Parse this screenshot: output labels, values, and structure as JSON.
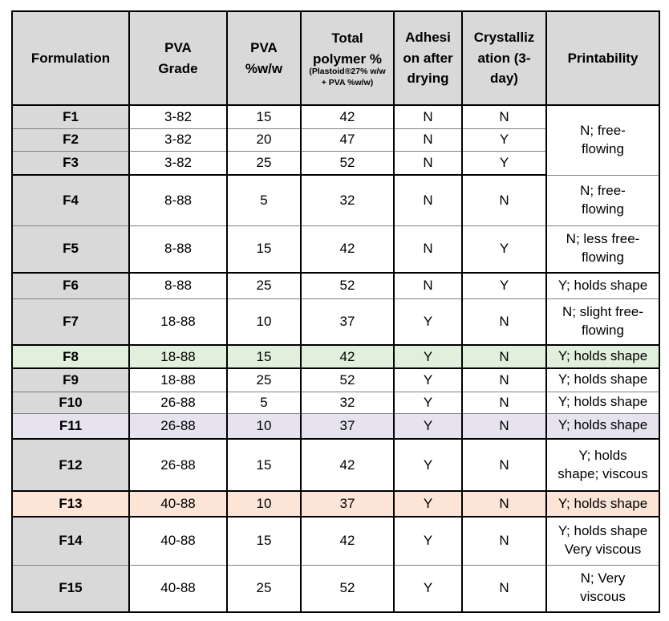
{
  "colors": {
    "header_bg": "#d9d9d9",
    "formulation_col_bg": "#d9d9d9",
    "highlight_green": "#e1f0dc",
    "highlight_lavender": "#e6e3ee",
    "highlight_peach": "#fce4d6",
    "border_dark": "#000000",
    "border_light": "#808080"
  },
  "table": {
    "columns": [
      {
        "label": "Formulation"
      },
      {
        "label": "PVA\nGrade"
      },
      {
        "label": "PVA\n%w/w"
      },
      {
        "label": "Total\npolymer %",
        "sublabel": "(Plastoid®27% w/w\n+ PVA %w/w)"
      },
      {
        "label": "Adhesi\non after\ndrying"
      },
      {
        "label": "Crystalliz\nation (3-\nday)"
      },
      {
        "label": "Printability"
      }
    ],
    "rows": [
      {
        "formulation": "F1",
        "pva_grade": "3-82",
        "pva_pct": "15",
        "total_polymer_pct": "42",
        "adhesion_after_drying": "N",
        "crystallization_3day": "N",
        "printability": "N; free-\nflowing",
        "printability_rowspan": 3,
        "highlight": "none"
      },
      {
        "formulation": "F2",
        "pva_grade": "3-82",
        "pva_pct": "20",
        "total_polymer_pct": "47",
        "adhesion_after_drying": "N",
        "crystallization_3day": "Y",
        "highlight": "none"
      },
      {
        "formulation": "F3",
        "pva_grade": "3-82",
        "pva_pct": "25",
        "total_polymer_pct": "52",
        "adhesion_after_drying": "N",
        "crystallization_3day": "Y",
        "highlight": "none"
      },
      {
        "formulation": "F4",
        "pva_grade": "8-88",
        "pva_pct": "5",
        "total_polymer_pct": "32",
        "adhesion_after_drying": "N",
        "crystallization_3day": "N",
        "printability": "N; free-\nflowing",
        "highlight": "none"
      },
      {
        "formulation": "F5",
        "pva_grade": "8-88",
        "pva_pct": "15",
        "total_polymer_pct": "42",
        "adhesion_after_drying": "N",
        "crystallization_3day": "Y",
        "printability": "N; less free-\nflowing",
        "highlight": "none"
      },
      {
        "formulation": "F6",
        "pva_grade": "8-88",
        "pva_pct": "25",
        "total_polymer_pct": "52",
        "adhesion_after_drying": "N",
        "crystallization_3day": "Y",
        "printability": "Y; holds shape",
        "highlight": "none"
      },
      {
        "formulation": "F7",
        "pva_grade": "18-88",
        "pva_pct": "10",
        "total_polymer_pct": "37",
        "adhesion_after_drying": "Y",
        "crystallization_3day": "N",
        "printability": "N; slight free-\nflowing",
        "highlight": "none"
      },
      {
        "formulation": "F8",
        "pva_grade": "18-88",
        "pva_pct": "15",
        "total_polymer_pct": "42",
        "adhesion_after_drying": "Y",
        "crystallization_3day": "N",
        "printability": "Y; holds shape",
        "highlight": "green"
      },
      {
        "formulation": "F9",
        "pva_grade": "18-88",
        "pva_pct": "25",
        "total_polymer_pct": "52",
        "adhesion_after_drying": "Y",
        "crystallization_3day": "N",
        "printability": "Y; holds shape",
        "highlight": "none"
      },
      {
        "formulation": "F10",
        "pva_grade": "26-88",
        "pva_pct": "5",
        "total_polymer_pct": "32",
        "adhesion_after_drying": "Y",
        "crystallization_3day": "N",
        "printability": "Y; holds shape",
        "highlight": "none"
      },
      {
        "formulation": "F11",
        "pva_grade": "26-88",
        "pva_pct": "10",
        "total_polymer_pct": "37",
        "adhesion_after_drying": "Y",
        "crystallization_3day": "N",
        "printability": "Y; holds shape",
        "highlight": "lavender"
      },
      {
        "formulation": "F12",
        "pva_grade": "26-88",
        "pva_pct": "15",
        "total_polymer_pct": "42",
        "adhesion_after_drying": "Y",
        "crystallization_3day": "N",
        "printability": "Y; holds\nshape; viscous",
        "highlight": "none"
      },
      {
        "formulation": "F13",
        "pva_grade": "40-88",
        "pva_pct": "10",
        "total_polymer_pct": "37",
        "adhesion_after_drying": "Y",
        "crystallization_3day": "N",
        "printability": "Y; holds shape",
        "highlight": "peach"
      },
      {
        "formulation": "F14",
        "pva_grade": "40-88",
        "pva_pct": "15",
        "total_polymer_pct": "42",
        "adhesion_after_drying": "Y",
        "crystallization_3day": "N",
        "printability": "Y; holds shape\nVery viscous",
        "highlight": "none"
      },
      {
        "formulation": "F15",
        "pva_grade": "40-88",
        "pva_pct": "25",
        "total_polymer_pct": "52",
        "adhesion_after_drying": "Y",
        "crystallization_3day": "N",
        "printability": "N; Very\nviscous",
        "highlight": "none"
      }
    ]
  }
}
